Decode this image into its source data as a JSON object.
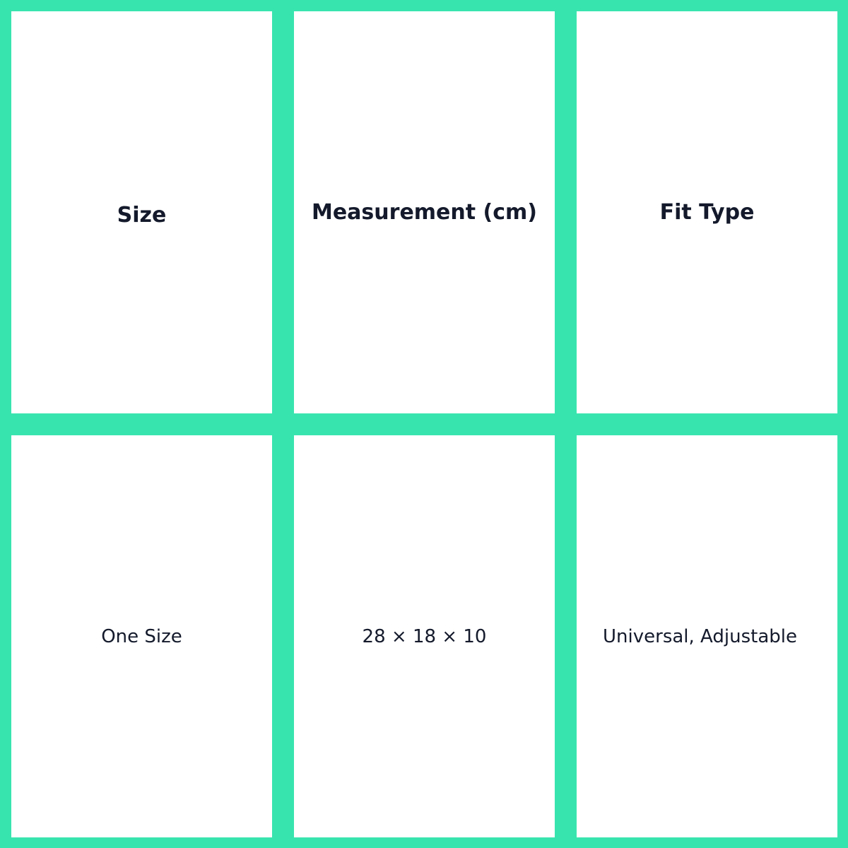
{
  "colors": {
    "border": "#38e4ae",
    "cell_background": "#ffffff",
    "text": "#141a2b"
  },
  "table": {
    "headers": [
      "Size",
      "Measurement (cm)",
      "Fit Type"
    ],
    "rows": [
      [
        "One Size",
        "28 × 18 × 10",
        "Universal, Adjustable"
      ]
    ]
  }
}
